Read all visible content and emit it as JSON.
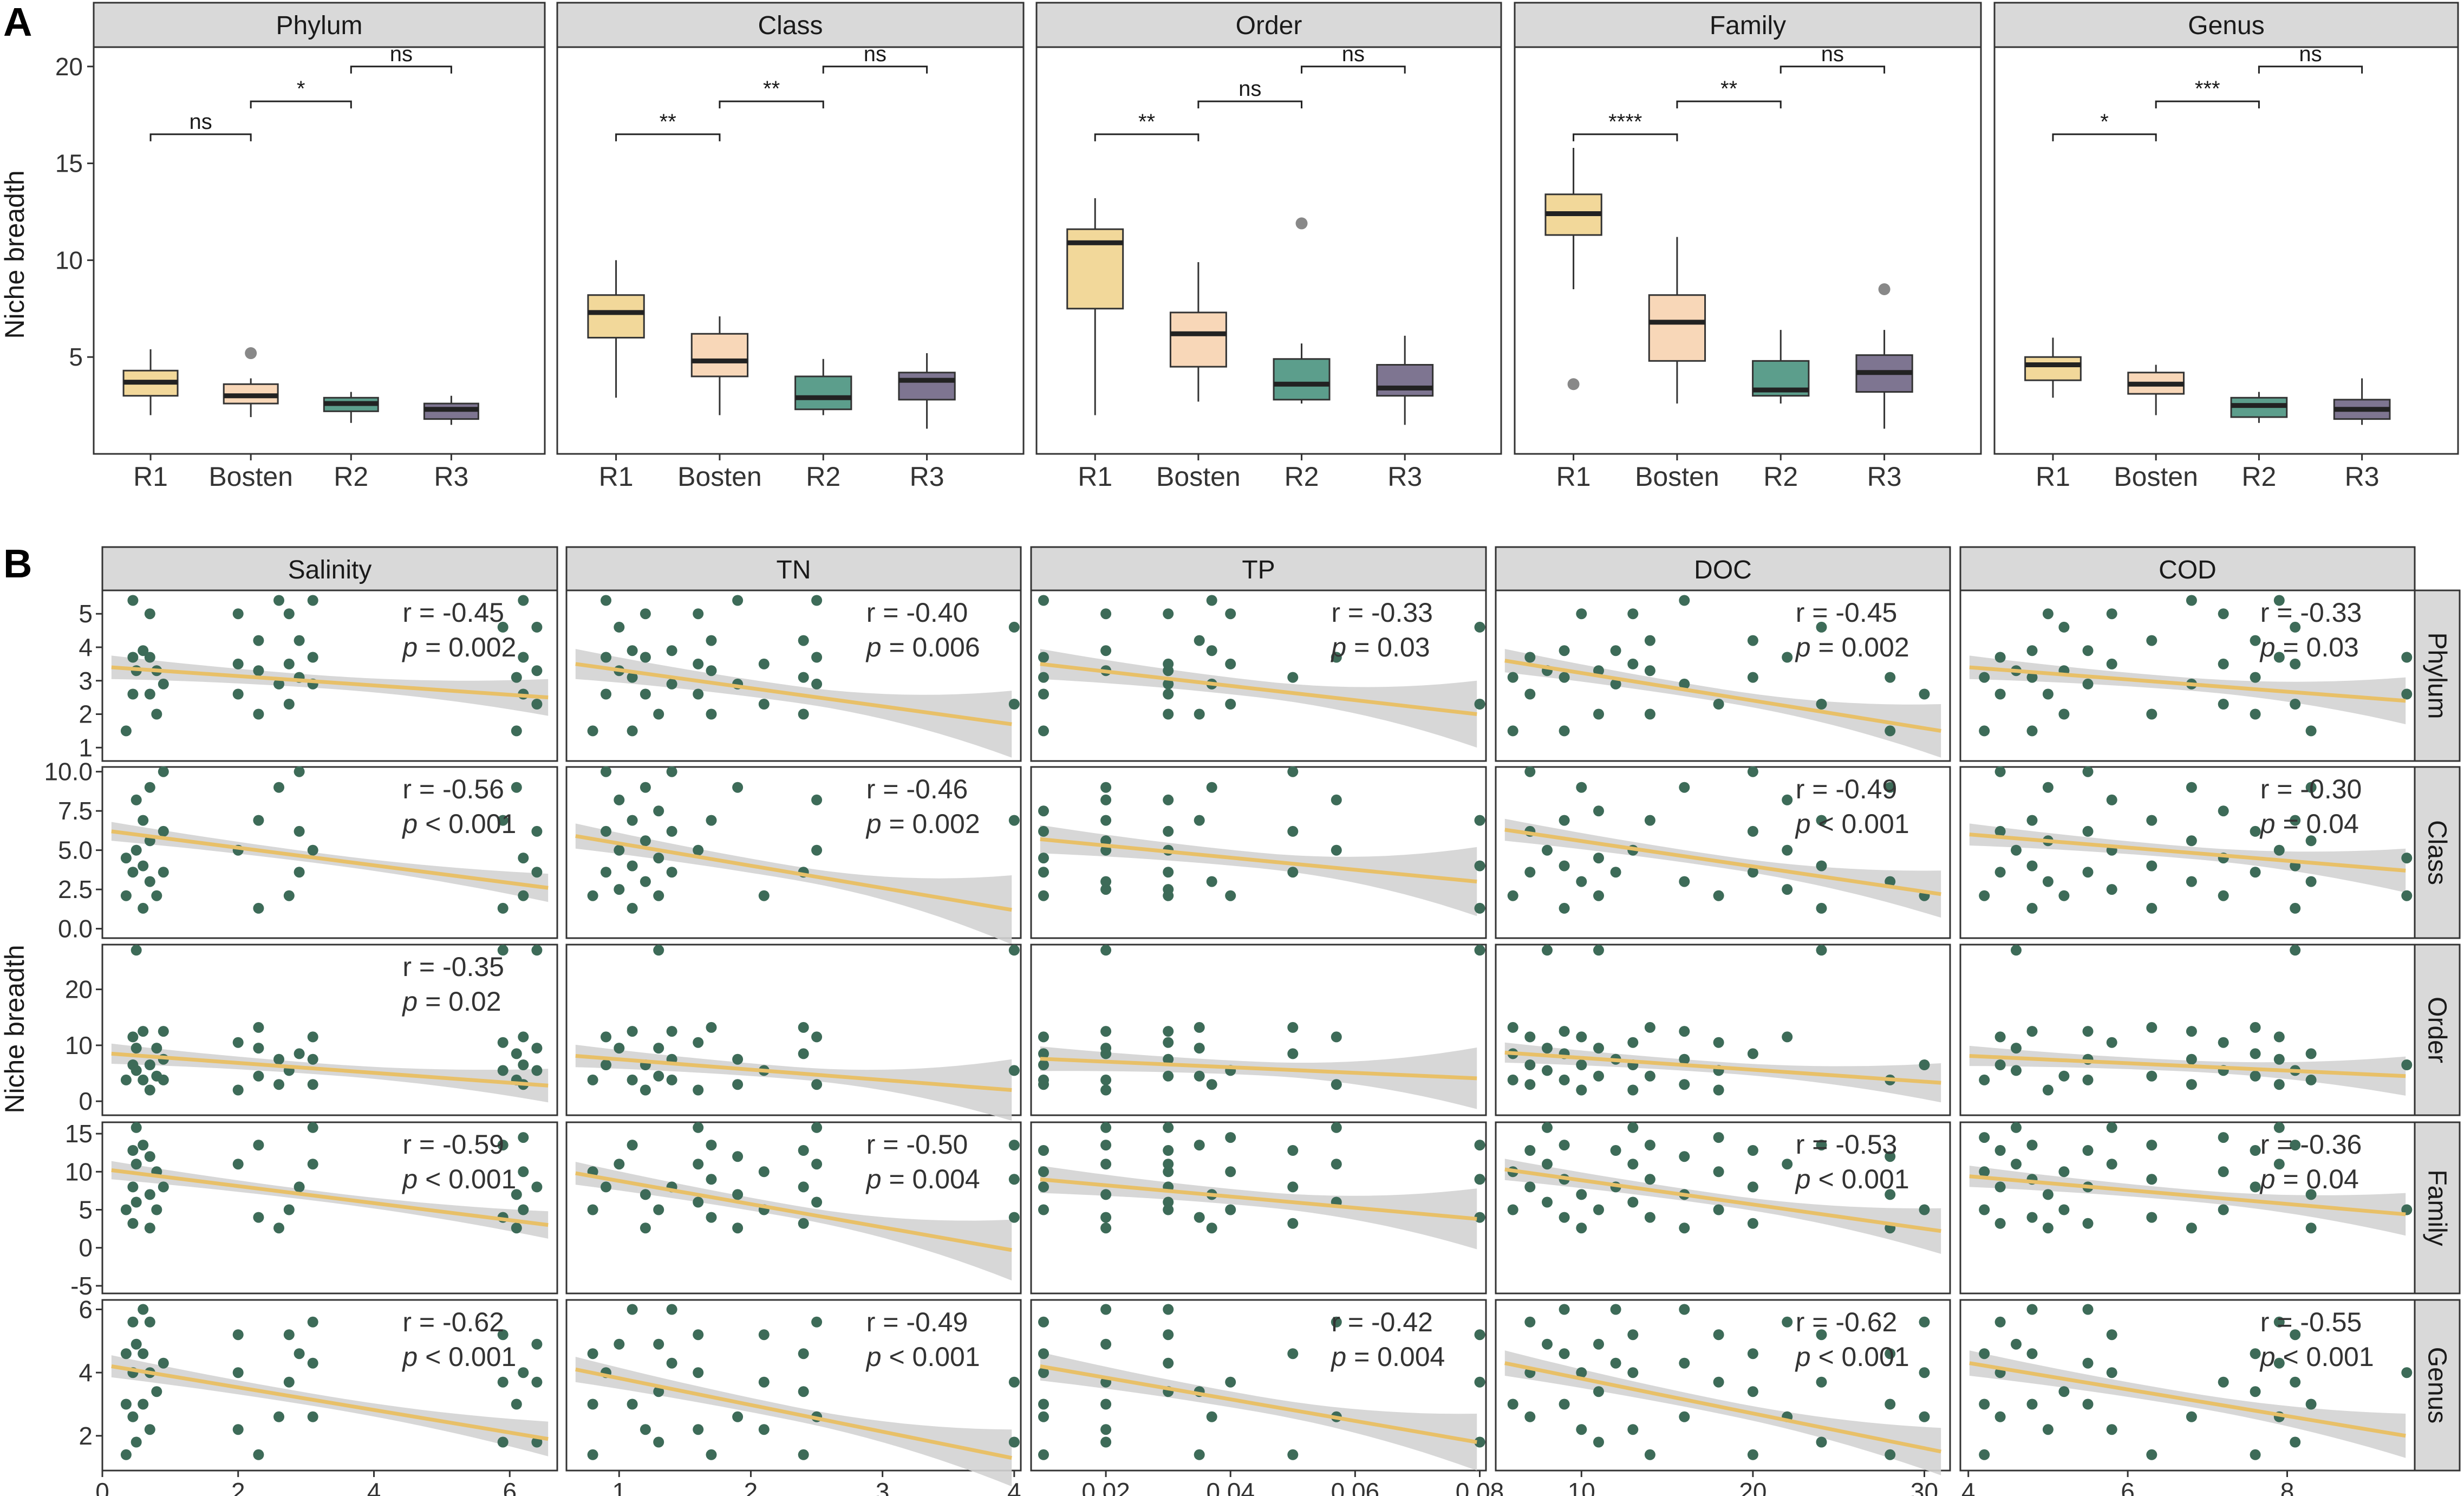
{
  "figure": {
    "label_a": "A",
    "label_b": "B",
    "ylabel_a": "Niche breadth",
    "ylabel_b": "Niche breadth"
  },
  "chart_data": [
    {
      "type": "boxplot",
      "title": "A",
      "ylabel": "Niche breadth",
      "categories": [
        "R1",
        "Bosten",
        "R2",
        "R3"
      ],
      "ylim": [
        0,
        21
      ],
      "yticks": [
        5,
        10,
        15,
        20
      ],
      "colors": {
        "R1": "#f2d89a",
        "Bosten": "#f8d7b8",
        "R2": "#5c9e8c",
        "R3": "#7e7591"
      },
      "facets": [
        {
          "name": "Phylum",
          "boxes": [
            {
              "cat": "R1",
              "min": 2.0,
              "q1": 3.0,
              "median": 3.7,
              "q3": 4.3,
              "max": 5.4,
              "outliers": []
            },
            {
              "cat": "Bosten",
              "min": 1.9,
              "q1": 2.6,
              "median": 3.0,
              "q3": 3.6,
              "max": 3.9,
              "outliers": [
                5.2
              ]
            },
            {
              "cat": "R2",
              "min": 1.6,
              "q1": 2.2,
              "median": 2.6,
              "q3": 2.9,
              "max": 3.2,
              "outliers": []
            },
            {
              "cat": "R3",
              "min": 1.5,
              "q1": 1.8,
              "median": 2.3,
              "q3": 2.6,
              "max": 3.0,
              "outliers": []
            }
          ],
          "brackets": [
            {
              "from": "R1",
              "to": "Bosten",
              "y": 16.5,
              "label": "ns"
            },
            {
              "from": "Bosten",
              "to": "R2",
              "y": 18.2,
              "label": "*"
            },
            {
              "from": "R2",
              "to": "R3",
              "y": 20.0,
              "label": "ns"
            }
          ]
        },
        {
          "name": "Class",
          "boxes": [
            {
              "cat": "R1",
              "min": 2.9,
              "q1": 6.0,
              "median": 7.3,
              "q3": 8.2,
              "max": 10.0,
              "outliers": []
            },
            {
              "cat": "Bosten",
              "min": 2.0,
              "q1": 4.0,
              "median": 4.8,
              "q3": 6.2,
              "max": 7.1,
              "outliers": []
            },
            {
              "cat": "R2",
              "min": 2.0,
              "q1": 2.3,
              "median": 2.9,
              "q3": 4.0,
              "max": 4.9,
              "outliers": []
            },
            {
              "cat": "R3",
              "min": 1.3,
              "q1": 2.8,
              "median": 3.8,
              "q3": 4.2,
              "max": 5.2,
              "outliers": []
            }
          ],
          "brackets": [
            {
              "from": "R1",
              "to": "Bosten",
              "y": 16.5,
              "label": "**"
            },
            {
              "from": "Bosten",
              "to": "R2",
              "y": 18.2,
              "label": "**"
            },
            {
              "from": "R2",
              "to": "R3",
              "y": 20.0,
              "label": "ns"
            }
          ]
        },
        {
          "name": "Order",
          "boxes": [
            {
              "cat": "R1",
              "min": 2.0,
              "q1": 7.5,
              "median": 10.9,
              "q3": 11.6,
              "max": 13.2,
              "outliers": []
            },
            {
              "cat": "Bosten",
              "min": 2.7,
              "q1": 4.5,
              "median": 6.2,
              "q3": 7.3,
              "max": 9.9,
              "outliers": []
            },
            {
              "cat": "R2",
              "min": 2.6,
              "q1": 2.8,
              "median": 3.6,
              "q3": 4.9,
              "max": 5.7,
              "outliers": [
                11.9
              ]
            },
            {
              "cat": "R3",
              "min": 1.5,
              "q1": 3.0,
              "median": 3.4,
              "q3": 4.6,
              "max": 6.1,
              "outliers": []
            }
          ],
          "brackets": [
            {
              "from": "R1",
              "to": "Bosten",
              "y": 16.5,
              "label": "**"
            },
            {
              "from": "Bosten",
              "to": "R2",
              "y": 18.2,
              "label": "ns"
            },
            {
              "from": "R2",
              "to": "R3",
              "y": 20.0,
              "label": "ns"
            }
          ]
        },
        {
          "name": "Family",
          "boxes": [
            {
              "cat": "R1",
              "min": 8.5,
              "q1": 11.3,
              "median": 12.4,
              "q3": 13.4,
              "max": 15.8,
              "outliers": [
                3.6
              ]
            },
            {
              "cat": "Bosten",
              "min": 2.6,
              "q1": 4.8,
              "median": 6.8,
              "q3": 8.2,
              "max": 11.2,
              "outliers": []
            },
            {
              "cat": "R2",
              "min": 2.6,
              "q1": 3.0,
              "median": 3.3,
              "q3": 4.8,
              "max": 6.4,
              "outliers": []
            },
            {
              "cat": "R3",
              "min": 1.3,
              "q1": 3.2,
              "median": 4.2,
              "q3": 5.1,
              "max": 6.4,
              "outliers": [
                8.5
              ]
            }
          ],
          "brackets": [
            {
              "from": "R1",
              "to": "Bosten",
              "y": 16.5,
              "label": "****"
            },
            {
              "from": "Bosten",
              "to": "R2",
              "y": 18.2,
              "label": "**"
            },
            {
              "from": "R2",
              "to": "R3",
              "y": 20.0,
              "label": "ns"
            }
          ]
        },
        {
          "name": "Genus",
          "boxes": [
            {
              "cat": "R1",
              "min": 2.9,
              "q1": 3.8,
              "median": 4.6,
              "q3": 5.0,
              "max": 6.0,
              "outliers": []
            },
            {
              "cat": "Bosten",
              "min": 2.0,
              "q1": 3.1,
              "median": 3.6,
              "q3": 4.2,
              "max": 4.6,
              "outliers": []
            },
            {
              "cat": "R2",
              "min": 1.6,
              "q1": 1.9,
              "median": 2.5,
              "q3": 2.9,
              "max": 3.2,
              "outliers": []
            },
            {
              "cat": "R3",
              "min": 1.5,
              "q1": 1.8,
              "median": 2.3,
              "q3": 2.8,
              "max": 3.9,
              "outliers": []
            }
          ],
          "brackets": [
            {
              "from": "R1",
              "to": "Bosten",
              "y": 16.5,
              "label": "*"
            },
            {
              "from": "Bosten",
              "to": "R2",
              "y": 18.2,
              "label": "***"
            },
            {
              "from": "R2",
              "to": "R3",
              "y": 20.0,
              "label": "ns"
            }
          ]
        }
      ]
    },
    {
      "type": "scatter",
      "title": "B",
      "ylabel": "Niche breadth",
      "point_color": "#3d6b58",
      "fit_color": "#e8c068",
      "band_color": "#d3d3d3",
      "columns": [
        {
          "name": "Salinity",
          "xlim": [
            0,
            6.7
          ],
          "xticks": [
            0,
            2,
            4,
            6
          ],
          "x": [
            0.35,
            0.45,
            0.5,
            0.6,
            0.7,
            0.8,
            0.9,
            2.0,
            2.3,
            2.6,
            2.75,
            2.9,
            3.1,
            5.9,
            6.1,
            6.2,
            6.4
          ]
        },
        {
          "name": "TN",
          "xlim": [
            0.6,
            4.05
          ],
          "xticks": [
            1,
            2,
            3,
            4
          ],
          "x": [
            0.8,
            0.9,
            1.0,
            1.1,
            1.2,
            1.3,
            1.4,
            1.6,
            1.7,
            1.9,
            2.1,
            2.4,
            2.5,
            4.0
          ]
        },
        {
          "name": "TP",
          "xlim": [
            0.008,
            0.081
          ],
          "xticks": [
            0.02,
            0.04,
            0.06,
            0.08
          ],
          "x": [
            0.01,
            0.01,
            0.02,
            0.02,
            0.02,
            0.03,
            0.03,
            0.03,
            0.035,
            0.037,
            0.04,
            0.05,
            0.057,
            0.08
          ]
        },
        {
          "name": "DOC",
          "xlim": [
            5,
            31.5
          ],
          "xticks": [
            10,
            20,
            30
          ],
          "x": [
            6,
            7,
            8,
            9,
            10,
            11,
            12,
            13,
            14,
            16,
            18,
            20,
            22,
            24,
            28,
            30
          ]
        },
        {
          "name": "COD",
          "xlim": [
            3.9,
            9.6
          ],
          "xticks": [
            4,
            6,
            8
          ],
          "x": [
            4.2,
            4.4,
            4.6,
            4.8,
            5.0,
            5.2,
            5.5,
            5.8,
            6.3,
            6.8,
            7.2,
            7.6,
            7.9,
            8.1,
            8.3,
            9.5
          ]
        }
      ],
      "rows": [
        {
          "name": "Phylum",
          "ylim": [
            0.6,
            5.7
          ],
          "yticks": [
            1,
            2,
            3,
            4,
            5
          ],
          "y_values": [
            1.5,
            2.0,
            2.3,
            2.6,
            2.9,
            3.1,
            3.3,
            3.5,
            3.7,
            3.9,
            4.2,
            4.6,
            5.0,
            5.4
          ]
        },
        {
          "name": "Class",
          "ylim": [
            -0.6,
            10.3
          ],
          "yticks": [
            0.0,
            2.5,
            5.0,
            7.5,
            10.0
          ],
          "y_values": [
            1.3,
            2.1,
            2.5,
            3.0,
            3.6,
            4.0,
            4.5,
            5.0,
            5.6,
            6.2,
            6.9,
            7.5,
            8.2,
            9.0,
            10.0
          ]
        },
        {
          "name": "Order",
          "ylim": [
            -2.5,
            28
          ],
          "yticks": [
            0,
            10,
            20
          ],
          "y_values": [
            2.0,
            3.0,
            3.8,
            4.5,
            5.5,
            6.5,
            7.5,
            8.5,
            9.5,
            10.5,
            11.5,
            12.5,
            13.2,
            27
          ]
        },
        {
          "name": "Family",
          "ylim": [
            -6,
            16.5
          ],
          "yticks": [
            -5,
            0,
            5,
            10,
            15
          ],
          "y_values": [
            2.6,
            3.2,
            4.0,
            5.0,
            6.0,
            7.0,
            8.0,
            9.0,
            10.0,
            11.0,
            12.0,
            12.8,
            13.5,
            14.5,
            15.8
          ]
        },
        {
          "name": "Genus",
          "ylim": [
            0.9,
            6.3
          ],
          "yticks": [
            2,
            4,
            6
          ],
          "y_values": [
            1.4,
            1.8,
            2.2,
            2.6,
            3.0,
            3.4,
            3.7,
            4.0,
            4.3,
            4.6,
            4.9,
            5.2,
            5.6,
            6.0
          ]
        }
      ],
      "fits": [
        [
          {
            "y0": 3.4,
            "y1": 2.5,
            "band0": 0.35,
            "band1": 0.55
          },
          {
            "y0": 3.5,
            "y1": 1.7,
            "band0": 0.45,
            "band1": 1.0
          },
          {
            "y0": 3.5,
            "y1": 2.0,
            "band0": 0.45,
            "band1": 1.0
          },
          {
            "y0": 3.6,
            "y1": 1.5,
            "band0": 0.35,
            "band1": 0.8
          },
          {
            "y0": 3.4,
            "y1": 2.4,
            "band0": 0.35,
            "band1": 0.7
          }
        ],
        [
          {
            "y0": 6.2,
            "y1": 2.6,
            "band0": 0.6,
            "band1": 0.9
          },
          {
            "y0": 5.9,
            "y1": 1.2,
            "band0": 0.8,
            "band1": 2.2
          },
          {
            "y0": 5.7,
            "y1": 3.0,
            "band0": 0.9,
            "band1": 2.2
          },
          {
            "y0": 6.3,
            "y1": 2.2,
            "band0": 0.7,
            "band1": 1.5
          },
          {
            "y0": 6.0,
            "y1": 3.7,
            "band0": 0.7,
            "band1": 1.4
          }
        ],
        [
          {
            "y0": 8.5,
            "y1": 2.8,
            "band0": 1.8,
            "band1": 3.0
          },
          {
            "y0": 8.1,
            "y1": 2.0,
            "band0": 2.0,
            "band1": 5.5
          },
          {
            "y0": 7.6,
            "y1": 4.1,
            "band0": 2.2,
            "band1": 5.5
          },
          {
            "y0": 8.7,
            "y1": 3.3,
            "band0": 1.8,
            "band1": 3.5
          },
          {
            "y0": 8.1,
            "y1": 4.5,
            "band0": 1.8,
            "band1": 3.5
          }
        ],
        [
          {
            "y0": 10.2,
            "y1": 3.0,
            "band0": 1.2,
            "band1": 1.8
          },
          {
            "y0": 9.8,
            "y1": -0.3,
            "band0": 1.5,
            "band1": 4.0
          },
          {
            "y0": 9.0,
            "y1": 3.8,
            "band0": 1.8,
            "band1": 4.0
          },
          {
            "y0": 10.3,
            "y1": 2.2,
            "band0": 1.4,
            "band1": 3.0
          },
          {
            "y0": 9.4,
            "y1": 4.4,
            "band0": 1.4,
            "band1": 2.8
          }
        ],
        [
          {
            "y0": 4.2,
            "y1": 1.9,
            "band0": 0.35,
            "band1": 0.55
          },
          {
            "y0": 4.1,
            "y1": 1.3,
            "band0": 0.4,
            "band1": 0.9
          },
          {
            "y0": 4.2,
            "y1": 1.8,
            "band0": 0.45,
            "band1": 0.9
          },
          {
            "y0": 4.3,
            "y1": 1.5,
            "band0": 0.4,
            "band1": 0.75
          },
          {
            "y0": 4.3,
            "y1": 2.0,
            "band0": 0.4,
            "band1": 0.7
          }
        ]
      ],
      "stats": [
        [
          {
            "r": "r = -0.45",
            "p": "= 0.002"
          },
          {
            "r": "r = -0.40",
            "p": "= 0.006"
          },
          {
            "r": "r = -0.33",
            "p": "= 0.03"
          },
          {
            "r": "r = -0.45",
            "p": "= 0.002"
          },
          {
            "r": "r = -0.33",
            "p": "= 0.03"
          }
        ],
        [
          {
            "r": "r = -0.56",
            "p": "< 0.001"
          },
          {
            "r": "r = -0.46",
            "p": "= 0.002"
          },
          {
            "r": "",
            "p": ""
          },
          {
            "r": "r = -0.49",
            "p": "< 0.001"
          },
          {
            "r": "r = -0.30",
            "p": "= 0.04"
          }
        ],
        [
          {
            "r": "r = -0.35",
            "p": "= 0.02"
          },
          {
            "r": "",
            "p": ""
          },
          {
            "r": "",
            "p": ""
          },
          {
            "r": "",
            "p": ""
          },
          {
            "r": "",
            "p": ""
          }
        ],
        [
          {
            "r": "r = -0.59",
            "p": "< 0.001"
          },
          {
            "r": "r = -0.50",
            "p": "= 0.004"
          },
          {
            "r": "",
            "p": ""
          },
          {
            "r": "r = -0.53",
            "p": "< 0.001"
          },
          {
            "r": "r = -0.36",
            "p": "= 0.04"
          }
        ],
        [
          {
            "r": "r = -0.62",
            "p": "< 0.001"
          },
          {
            "r": "r = -0.49",
            "p": "< 0.001"
          },
          {
            "r": "r = -0.42",
            "p": "= 0.004"
          },
          {
            "r": "r = -0.62",
            "p": "< 0.001"
          },
          {
            "r": "r = -0.55",
            "p": "< 0.001"
          }
        ]
      ]
    }
  ]
}
